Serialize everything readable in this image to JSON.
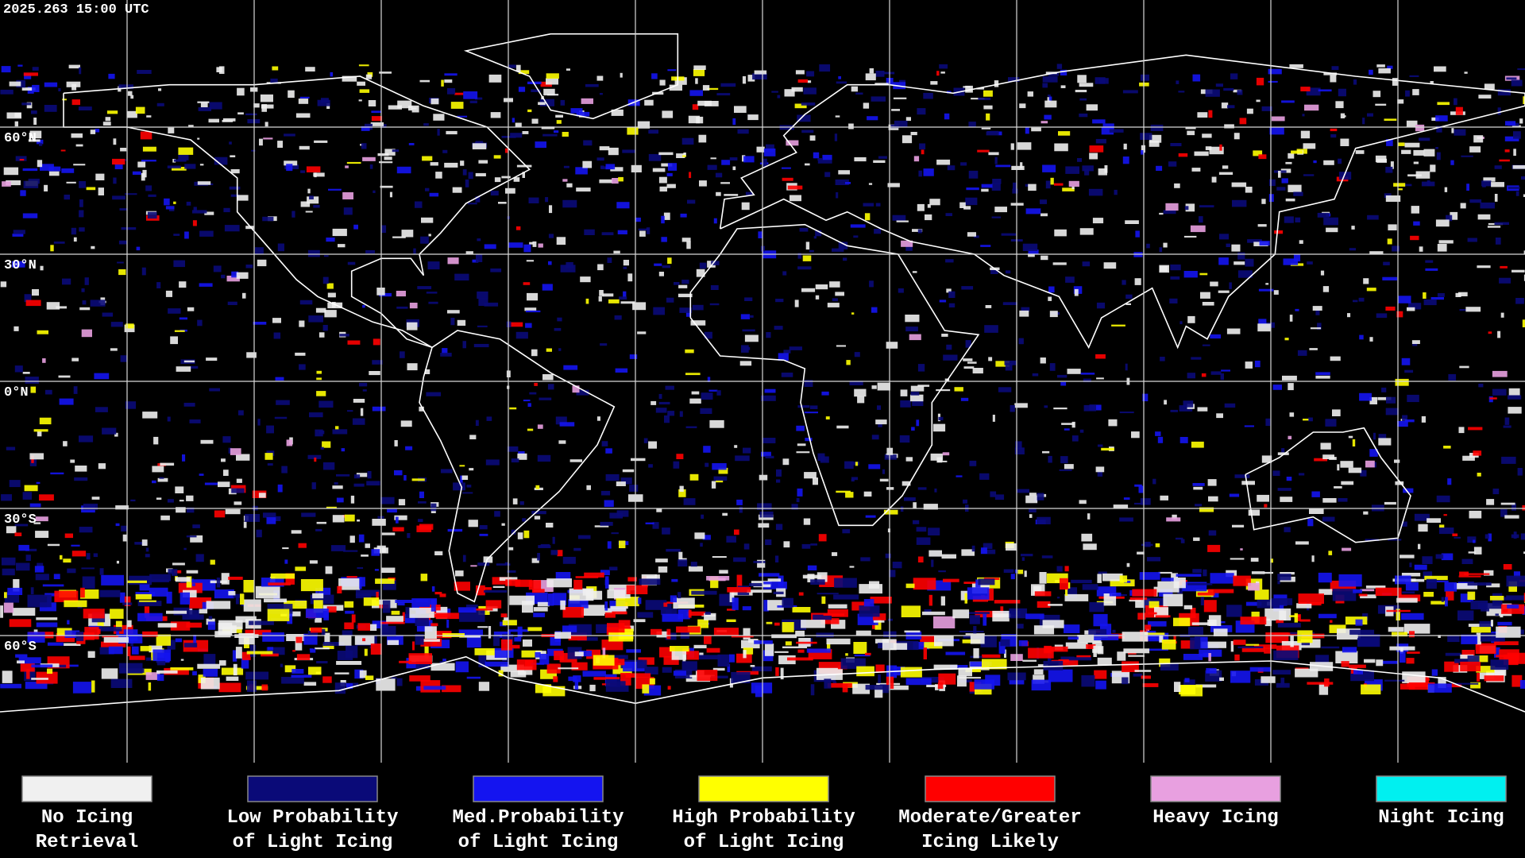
{
  "timestamp": "2025.263 15:00 UTC",
  "map": {
    "lat_labels": [
      "60°N",
      "30°N",
      "0°N",
      "30°S",
      "60°S"
    ]
  },
  "legend": {
    "items": [
      {
        "label": [
          "No Icing",
          "Retrieval"
        ],
        "color": "#f0f0f0"
      },
      {
        "label": [
          "Low Probability",
          "of Light Icing"
        ],
        "color": "#0a0a78"
      },
      {
        "label": [
          "Med.Probability",
          "of Light Icing"
        ],
        "color": "#1414f0"
      },
      {
        "label": [
          "High Probability",
          "of Light Icing"
        ],
        "color": "#ffff00"
      },
      {
        "label": [
          "Moderate/Greater",
          "Icing Likely"
        ],
        "color": "#ff0000"
      },
      {
        "label": [
          "Heavy Icing"
        ],
        "color": "#e8a0e0"
      },
      {
        "label": [
          "Night Icing"
        ],
        "color": "#00f0f0"
      }
    ]
  }
}
